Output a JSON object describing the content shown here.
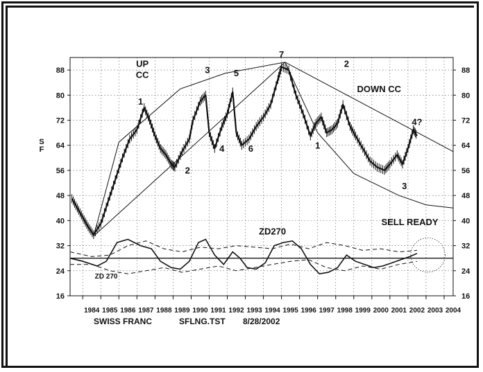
{
  "chart_data": {
    "type": "line",
    "title": "",
    "ylabel": "S F",
    "ylim": [
      16,
      92
    ],
    "xlim": [
      1983.3,
      2004.5
    ],
    "y_ticks": [
      "88",
      "80",
      "72",
      "64",
      "56",
      "48",
      "40",
      "32",
      "24",
      "16"
    ],
    "x_ticks": [
      "1984",
      "1985",
      "1986",
      "1987",
      "1988",
      "1989",
      "1990",
      "1991",
      "1992",
      "1993",
      "1994",
      "1995",
      "1996",
      "1997",
      "1998",
      "1999",
      "2000",
      "2001",
      "2002",
      "2003",
      "2004"
    ],
    "grid": true,
    "price_series": {
      "name": "",
      "points": [
        [
          1983.4,
          47
        ],
        [
          1983.7,
          44
        ],
        [
          1984.0,
          41
        ],
        [
          1984.3,
          38
        ],
        [
          1984.6,
          35.5
        ],
        [
          1985.0,
          39
        ],
        [
          1985.4,
          46
        ],
        [
          1985.8,
          53
        ],
        [
          1986.2,
          60
        ],
        [
          1986.6,
          66
        ],
        [
          1987.0,
          69
        ],
        [
          1987.4,
          76
        ],
        [
          1987.7,
          72
        ],
        [
          1988.0,
          67
        ],
        [
          1988.3,
          63
        ],
        [
          1988.6,
          61
        ],
        [
          1988.9,
          58
        ],
        [
          1989.1,
          57
        ],
        [
          1989.5,
          62
        ],
        [
          1989.9,
          66
        ],
        [
          1990.1,
          72
        ],
        [
          1990.5,
          78
        ],
        [
          1990.8,
          80
        ],
        [
          1991.0,
          68
        ],
        [
          1991.3,
          63
        ],
        [
          1991.7,
          70
        ],
        [
          1992.0,
          74
        ],
        [
          1992.3,
          81
        ],
        [
          1992.5,
          68
        ],
        [
          1992.8,
          64
        ],
        [
          1993.2,
          66
        ],
        [
          1993.6,
          70
        ],
        [
          1994.0,
          73
        ],
        [
          1994.4,
          77
        ],
        [
          1994.8,
          85
        ],
        [
          1995.0,
          89
        ],
        [
          1995.4,
          88
        ],
        [
          1995.8,
          80
        ],
        [
          1996.2,
          74
        ],
        [
          1996.6,
          67
        ],
        [
          1996.9,
          71
        ],
        [
          1997.2,
          73
        ],
        [
          1997.5,
          68
        ],
        [
          1997.8,
          69
        ],
        [
          1998.1,
          71
        ],
        [
          1998.4,
          77
        ],
        [
          1998.8,
          70
        ],
        [
          1999.1,
          67
        ],
        [
          1999.5,
          63
        ],
        [
          1999.9,
          59
        ],
        [
          2000.3,
          57
        ],
        [
          2000.7,
          56
        ],
        [
          2001.0,
          58
        ],
        [
          2001.4,
          61
        ],
        [
          2001.7,
          58
        ],
        [
          2002.0,
          63
        ],
        [
          2002.3,
          69
        ],
        [
          2002.5,
          67
        ]
      ]
    },
    "up_channel_upper": [
      [
        1984.6,
        35
      ],
      [
        1986.0,
        65
      ],
      [
        1989.4,
        82
      ],
      [
        1991.9,
        87
      ],
      [
        1995.2,
        90.5
      ]
    ],
    "up_channel_lower": [
      [
        1984.6,
        35
      ],
      [
        1995.2,
        90.5
      ]
    ],
    "down_channel_upper": [
      [
        1995.2,
        90.5
      ],
      [
        2004.5,
        62
      ]
    ],
    "down_channel_lower": [
      [
        1995.2,
        90.5
      ],
      [
        1997.0,
        68
      ],
      [
        1999.0,
        55
      ],
      [
        2001.5,
        48
      ],
      [
        2003.0,
        45
      ],
      [
        2004.5,
        44
      ]
    ],
    "zd270_oscillator": {
      "name": "ZD270",
      "points": [
        [
          1983.3,
          28
        ],
        [
          1984.0,
          27
        ],
        [
          1984.8,
          25.5
        ],
        [
          1985.3,
          27
        ],
        [
          1985.9,
          33
        ],
        [
          1986.5,
          34
        ],
        [
          1987.2,
          32
        ],
        [
          1987.8,
          31
        ],
        [
          1988.3,
          27
        ],
        [
          1988.9,
          25
        ],
        [
          1989.4,
          24.5
        ],
        [
          1989.9,
          27
        ],
        [
          1990.4,
          33
        ],
        [
          1990.8,
          34
        ],
        [
          1991.3,
          29
        ],
        [
          1991.8,
          26
        ],
        [
          1992.3,
          30
        ],
        [
          1992.7,
          28
        ],
        [
          1993.1,
          25
        ],
        [
          1993.6,
          24.5
        ],
        [
          1994.1,
          26.5
        ],
        [
          1994.6,
          32
        ],
        [
          1995.1,
          33
        ],
        [
          1995.6,
          33.5
        ],
        [
          1996.1,
          31
        ],
        [
          1996.6,
          26
        ],
        [
          1997.1,
          23
        ],
        [
          1997.6,
          23.5
        ],
        [
          1998.1,
          25
        ],
        [
          1998.6,
          29
        ],
        [
          1999.1,
          27
        ],
        [
          1999.6,
          26
        ],
        [
          2000.1,
          25
        ],
        [
          2000.6,
          25.5
        ],
        [
          2001.1,
          26.5
        ],
        [
          2001.6,
          27.5
        ],
        [
          2002.1,
          28.5
        ],
        [
          2002.5,
          29.5
        ]
      ]
    },
    "zd_band_upper": [
      [
        1983.3,
        30
      ],
      [
        1984.5,
        28.5
      ],
      [
        1985.5,
        29
      ],
      [
        1986.5,
        32
      ],
      [
        1987.5,
        33.5
      ],
      [
        1988.5,
        31
      ],
      [
        1989.5,
        30
      ],
      [
        1990.5,
        31.5
      ],
      [
        1991.5,
        31
      ],
      [
        1992.5,
        32
      ],
      [
        1993.5,
        31.5
      ],
      [
        1994.5,
        31
      ],
      [
        1995.5,
        32.5
      ],
      [
        1996.5,
        31
      ],
      [
        1997.5,
        33
      ],
      [
        1998.5,
        32
      ],
      [
        1999.5,
        30.5
      ],
      [
        2000.5,
        31
      ],
      [
        2001.5,
        30
      ],
      [
        2002.5,
        30.5
      ]
    ],
    "zd_band_lower": [
      [
        1983.3,
        26
      ],
      [
        1984.5,
        26
      ],
      [
        1985.5,
        24
      ],
      [
        1986.5,
        23
      ],
      [
        1987.5,
        24
      ],
      [
        1988.5,
        25
      ],
      [
        1989.5,
        23.5
      ],
      [
        1990.5,
        24.5
      ],
      [
        1991.5,
        25.5
      ],
      [
        1992.5,
        24
      ],
      [
        1993.5,
        25
      ],
      [
        1994.5,
        26
      ],
      [
        1995.5,
        27
      ],
      [
        1996.5,
        27.5
      ],
      [
        1997.5,
        25
      ],
      [
        1998.5,
        24
      ],
      [
        1999.5,
        25.5
      ],
      [
        2000.5,
        24.5
      ],
      [
        2001.5,
        26
      ],
      [
        2002.5,
        27
      ]
    ],
    "zd_midline": 28,
    "annotations": [
      {
        "text": "UP",
        "x": 1987.3,
        "y": 89
      },
      {
        "text": "CC",
        "x": 1987.3,
        "y": 85.5
      },
      {
        "text": "1",
        "x": 1987.2,
        "y": 77
      },
      {
        "text": "3",
        "x": 1990.9,
        "y": 87
      },
      {
        "text": "5",
        "x": 1992.5,
        "y": 86
      },
      {
        "text": "7",
        "x": 1995.0,
        "y": 92
      },
      {
        "text": "2",
        "x": 1989.8,
        "y": 55
      },
      {
        "text": "4",
        "x": 1991.7,
        "y": 62
      },
      {
        "text": "6",
        "x": 1993.3,
        "y": 62
      },
      {
        "text": "2",
        "x": 1998.6,
        "y": 89
      },
      {
        "text": "DOWN CC",
        "x": 2000.4,
        "y": 81
      },
      {
        "text": "1",
        "x": 1997.0,
        "y": 63
      },
      {
        "text": "3",
        "x": 2001.8,
        "y": 50
      },
      {
        "text": "4?",
        "x": 2002.5,
        "y": 70.5
      },
      {
        "text": "SELL READY",
        "x": 2002.1,
        "y": 38.5
      },
      {
        "text": "ZD270",
        "x": 1994.5,
        "y": 35.5
      },
      {
        "text": "ZD 270",
        "x": 1985.3,
        "y": 21.5
      }
    ],
    "signal_circle": {
      "x": 2003.1,
      "y": 29,
      "r_years": 0.95
    }
  },
  "footer": {
    "instrument": "SWISS FRANC",
    "file": "SFLNG.TST",
    "date": "8/28/2002"
  }
}
